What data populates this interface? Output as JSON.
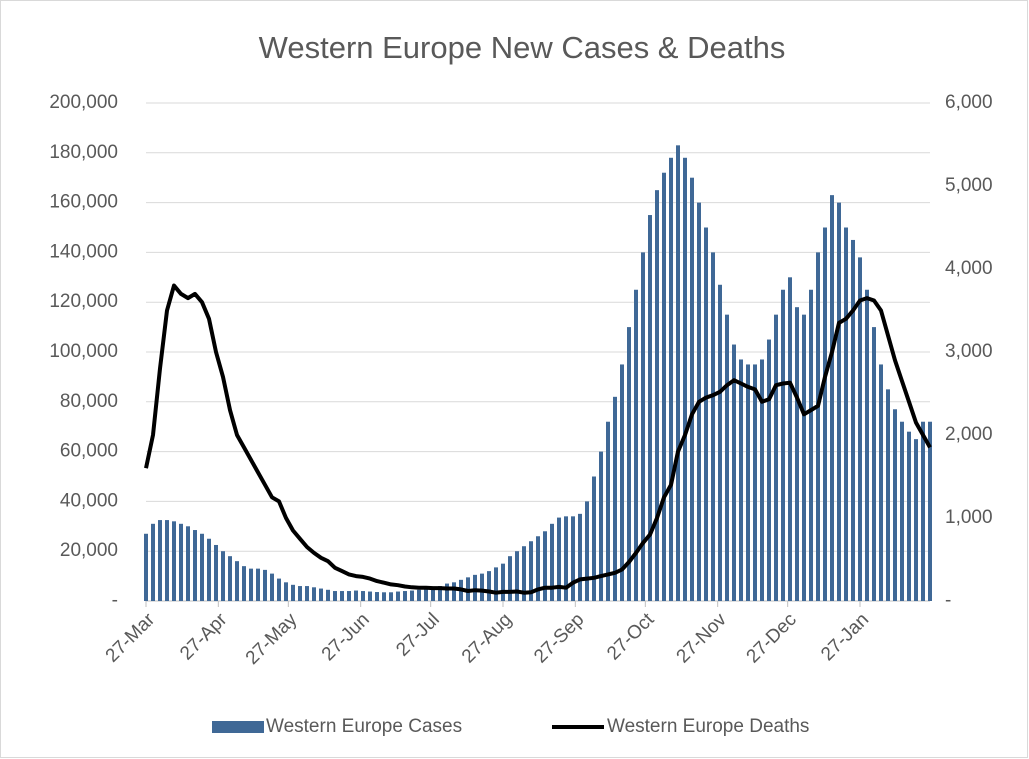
{
  "chart_data": {
    "type": "bar_line",
    "title": "Western Europe New Cases & Deaths",
    "x": [
      0,
      3,
      6,
      9,
      12,
      15,
      18,
      21,
      24,
      27,
      30,
      33,
      36,
      39,
      42,
      45,
      48,
      51,
      54,
      57,
      60,
      63,
      66,
      69,
      72,
      75,
      78,
      81,
      84,
      87,
      90,
      93,
      96,
      99,
      102,
      105,
      108,
      111,
      114,
      117,
      120,
      123,
      126,
      129,
      132,
      135,
      138,
      141,
      144,
      147,
      150,
      153,
      156,
      159,
      162,
      165,
      168,
      171,
      174,
      177,
      180,
      183,
      186,
      189,
      192,
      195,
      198,
      201,
      204,
      207,
      210,
      213,
      216,
      219,
      222,
      225,
      228,
      231,
      234,
      237,
      240,
      243,
      246,
      249,
      252,
      255,
      258,
      261,
      264,
      267,
      270,
      273,
      276,
      279,
      282,
      285,
      288,
      291,
      294,
      297,
      300,
      303,
      306,
      309,
      312,
      315,
      318,
      321,
      324,
      327,
      330,
      333,
      336
    ],
    "xlim": [
      0,
      336
    ],
    "xticks": [
      {
        "value": 0,
        "label": "27-Mar"
      },
      {
        "value": 31,
        "label": "27-Apr"
      },
      {
        "value": 61,
        "label": "27-May"
      },
      {
        "value": 92,
        "label": "27-Jun"
      },
      {
        "value": 122,
        "label": "27-Jul"
      },
      {
        "value": 153,
        "label": "27-Aug"
      },
      {
        "value": 184,
        "label": "27-Sep"
      },
      {
        "value": 214,
        "label": "27-Oct"
      },
      {
        "value": 245,
        "label": "27-Nov"
      },
      {
        "value": 275,
        "label": "27-Dec"
      },
      {
        "value": 306,
        "label": "27-Jan"
      }
    ],
    "ylim": [
      0,
      200000
    ],
    "yticks": [
      {
        "value": 0,
        "label": "-"
      },
      {
        "value": 20000,
        "label": "20,000"
      },
      {
        "value": 40000,
        "label": "40,000"
      },
      {
        "value": 60000,
        "label": "60,000"
      },
      {
        "value": 80000,
        "label": "80,000"
      },
      {
        "value": 100000,
        "label": "100,000"
      },
      {
        "value": 120000,
        "label": "120,000"
      },
      {
        "value": 140000,
        "label": "140,000"
      },
      {
        "value": 160000,
        "label": "160,000"
      },
      {
        "value": 180000,
        "label": "180,000"
      },
      {
        "value": 200000,
        "label": "200,000"
      }
    ],
    "y2lim": [
      0,
      6000
    ],
    "y2ticks": [
      {
        "value": 0,
        "label": "-"
      },
      {
        "value": 1000,
        "label": "1,000"
      },
      {
        "value": 2000,
        "label": "2,000"
      },
      {
        "value": 3000,
        "label": "3,000"
      },
      {
        "value": 4000,
        "label": "4,000"
      },
      {
        "value": 5000,
        "label": "5,000"
      },
      {
        "value": 6000,
        "label": "6,000"
      }
    ],
    "grid": true,
    "legend": "bottom",
    "series": [
      {
        "name": "Western Europe Cases",
        "kind": "bar",
        "color": "#3f6896",
        "values": [
          27000,
          31000,
          32500,
          32500,
          32000,
          31000,
          30000,
          28500,
          27000,
          25000,
          22500,
          20000,
          18000,
          16000,
          14000,
          13000,
          13000,
          12500,
          11000,
          9000,
          7500,
          6500,
          6000,
          6000,
          5500,
          5000,
          4500,
          4000,
          4000,
          4000,
          4200,
          4000,
          3800,
          3600,
          3500,
          3500,
          3800,
          4000,
          4200,
          4500,
          5000,
          5500,
          6000,
          7000,
          7500,
          8500,
          9500,
          10500,
          11000,
          12000,
          13500,
          15000,
          18000,
          20000,
          22000,
          24000,
          26000,
          28000,
          31000,
          33500,
          34000,
          34000,
          35000,
          40000,
          50000,
          60000,
          72000,
          82000,
          95000,
          110000,
          125000,
          140000,
          155000,
          165000,
          172000,
          178000,
          183000,
          178000,
          170000,
          160000,
          150000,
          140000,
          127000,
          115000,
          103000,
          97000,
          95000,
          95000,
          97000,
          105000,
          115000,
          125000,
          130000,
          118000,
          115000,
          125000,
          140000,
          150000,
          163000,
          160000,
          150000,
          145000,
          138000,
          125000,
          110000,
          95000,
          85000,
          77000,
          72000,
          68000,
          65000,
          72000,
          72000
        ]
      },
      {
        "name": "Western Europe Deaths",
        "kind": "line",
        "axis": "y2",
        "color": "#000000",
        "values": [
          1600,
          2000,
          2800,
          3500,
          3800,
          3700,
          3650,
          3700,
          3600,
          3400,
          3000,
          2700,
          2300,
          2000,
          1850,
          1700,
          1550,
          1400,
          1250,
          1200,
          1000,
          850,
          750,
          650,
          580,
          520,
          480,
          400,
          360,
          320,
          300,
          290,
          270,
          240,
          220,
          200,
          190,
          175,
          165,
          160,
          160,
          155,
          155,
          150,
          150,
          140,
          120,
          130,
          125,
          115,
          100,
          110,
          110,
          115,
          100,
          105,
          140,
          160,
          160,
          170,
          160,
          220,
          260,
          270,
          280,
          300,
          320,
          340,
          380,
          470,
          580,
          700,
          800,
          1000,
          1250,
          1400,
          1800,
          2000,
          2250,
          2400,
          2450,
          2480,
          2520,
          2600,
          2660,
          2620,
          2580,
          2550,
          2400,
          2430,
          2600,
          2620,
          2630,
          2450,
          2250,
          2300,
          2350,
          2700,
          3000,
          3350,
          3400,
          3500,
          3620,
          3650,
          3620,
          3500,
          3200,
          2900,
          2650,
          2400,
          2150,
          2000,
          1850
        ]
      }
    ]
  }
}
